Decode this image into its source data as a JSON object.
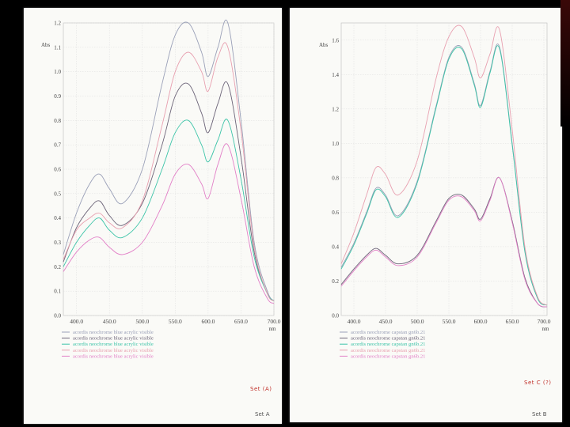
{
  "chart_data": [
    {
      "type": "line",
      "ylabel": "Abs",
      "xlabel": "nm",
      "xlim": [
        380,
        700
      ],
      "ylim": [
        0,
        1.2
      ],
      "y_ticks": [
        "0.0",
        "0.1",
        "0.2",
        "0.3",
        "0.4",
        "0.5",
        "0.6",
        "0.7",
        "0.8",
        "0.9",
        "1.0",
        "1.1",
        "1.2"
      ],
      "y_tick_values": [
        0,
        0.1,
        0.2,
        0.3,
        0.4,
        0.5,
        0.6,
        0.7,
        0.8,
        0.9,
        1.0,
        1.1,
        1.2
      ],
      "x_ticks": [
        "400.0",
        "450.0",
        "500.0",
        "550.0",
        "600.0",
        "650.0",
        "700.0"
      ],
      "x_tick_values": [
        400,
        450,
        500,
        550,
        600,
        650,
        700
      ],
      "grid": true,
      "legend_position": "bottom-left",
      "x": [
        380,
        400,
        420,
        435,
        450,
        470,
        500,
        530,
        550,
        570,
        590,
        600,
        615,
        630,
        650,
        670,
        690,
        700
      ],
      "series": [
        {
          "name": "acordis neochrome blue acrylic visible",
          "color": "#9aa0b8",
          "values": [
            0.25,
            0.42,
            0.54,
            0.58,
            0.52,
            0.46,
            0.6,
            0.95,
            1.15,
            1.2,
            1.08,
            0.98,
            1.1,
            1.2,
            0.8,
            0.3,
            0.1,
            0.06
          ]
        },
        {
          "name": "acordis neochrome blue acrylic visible",
          "color": "#6c6478",
          "values": [
            0.22,
            0.36,
            0.44,
            0.47,
            0.41,
            0.37,
            0.46,
            0.7,
            0.9,
            0.95,
            0.83,
            0.75,
            0.87,
            0.95,
            0.65,
            0.26,
            0.09,
            0.06
          ]
        },
        {
          "name": "acordis neochrome blue acrylic visible",
          "color": "#3cc4a8",
          "values": [
            0.2,
            0.3,
            0.37,
            0.4,
            0.35,
            0.32,
            0.4,
            0.6,
            0.75,
            0.8,
            0.7,
            0.63,
            0.72,
            0.8,
            0.56,
            0.24,
            0.09,
            0.06
          ]
        },
        {
          "name": "acordis neochrome blue acrylic visible",
          "color": "#e8a0b0",
          "values": [
            0.23,
            0.35,
            0.4,
            0.42,
            0.38,
            0.36,
            0.47,
            0.78,
            1.0,
            1.08,
            1.0,
            0.92,
            1.06,
            1.1,
            0.76,
            0.28,
            0.09,
            0.06
          ]
        },
        {
          "name": "acordis neochrome blue acrylic visible",
          "color": "#e27fc7",
          "values": [
            0.18,
            0.26,
            0.31,
            0.32,
            0.28,
            0.25,
            0.3,
            0.45,
            0.58,
            0.62,
            0.54,
            0.48,
            0.62,
            0.7,
            0.48,
            0.2,
            0.07,
            0.05
          ]
        }
      ],
      "note": "Set A",
      "handnote": "Set (A)"
    },
    {
      "type": "line",
      "ylabel": "Abs",
      "xlabel": "nm",
      "xlim": [
        380,
        705
      ],
      "ylim": [
        0,
        1.7
      ],
      "y_ticks": [
        "0.0",
        "0.2",
        "0.4",
        "0.6",
        "0.8",
        "1.0",
        "1.2",
        "1.4",
        "1.6"
      ],
      "y_tick_values": [
        0,
        0.2,
        0.4,
        0.6,
        0.8,
        1.0,
        1.2,
        1.4,
        1.6
      ],
      "x_ticks": [
        "400.0",
        "450.0",
        "500.0",
        "550.0",
        "600.0",
        "650.0",
        "700.0"
      ],
      "x_tick_values": [
        400,
        450,
        500,
        550,
        600,
        650,
        700
      ],
      "grid": true,
      "legend_position": "bottom-left",
      "x": [
        380,
        400,
        420,
        435,
        450,
        470,
        500,
        530,
        550,
        570,
        590,
        600,
        615,
        630,
        650,
        670,
        690,
        705
      ],
      "series": [
        {
          "name": "acordis neochrome capstan gn6b.21",
          "color": "#9aa0b8",
          "values": [
            0.28,
            0.42,
            0.6,
            0.74,
            0.7,
            0.58,
            0.78,
            1.22,
            1.5,
            1.56,
            1.35,
            1.22,
            1.42,
            1.56,
            1.0,
            0.38,
            0.1,
            0.06
          ]
        },
        {
          "name": "acordis neochrome capstan gn6b.21",
          "color": "#6c6478",
          "values": [
            0.18,
            0.27,
            0.35,
            0.39,
            0.35,
            0.3,
            0.35,
            0.55,
            0.68,
            0.7,
            0.62,
            0.56,
            0.68,
            0.8,
            0.55,
            0.22,
            0.07,
            0.05
          ]
        },
        {
          "name": "acordis neochrome capstan gn6b.21",
          "color": "#3cc4a8",
          "values": [
            0.27,
            0.41,
            0.59,
            0.73,
            0.69,
            0.57,
            0.77,
            1.21,
            1.49,
            1.55,
            1.34,
            1.21,
            1.41,
            1.55,
            0.99,
            0.37,
            0.1,
            0.06
          ]
        },
        {
          "name": "acordis neochrome capstan gn6b.21",
          "color": "#e8a0b0",
          "values": [
            0.3,
            0.48,
            0.7,
            0.86,
            0.82,
            0.7,
            0.9,
            1.38,
            1.62,
            1.68,
            1.5,
            1.38,
            1.52,
            1.66,
            1.08,
            0.4,
            0.11,
            0.06
          ]
        },
        {
          "name": "acordis neochrome capstan gn6b.21",
          "color": "#e27fc7",
          "values": [
            0.17,
            0.26,
            0.34,
            0.38,
            0.34,
            0.29,
            0.34,
            0.54,
            0.67,
            0.69,
            0.61,
            0.55,
            0.67,
            0.8,
            0.54,
            0.21,
            0.07,
            0.05
          ]
        }
      ],
      "note": "Set B",
      "handnote": "Set C (?)"
    }
  ]
}
